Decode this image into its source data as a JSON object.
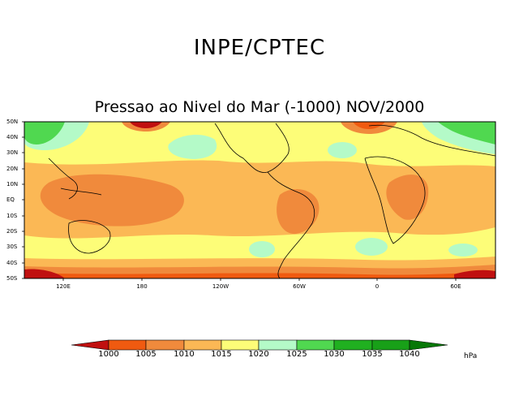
{
  "header": {
    "org_title": "INPE/CPTEC",
    "map_title": "Pressao ao Nivel do Mar (-1000) NOV/2000"
  },
  "axes": {
    "lat_ticks": [
      "50N",
      "40N",
      "30N",
      "20N",
      "10N",
      "EQ",
      "10S",
      "20S",
      "30S",
      "40S",
      "50S"
    ],
    "lon_ticks": [
      "120E",
      "180",
      "120W",
      "60W",
      "0",
      "60E"
    ]
  },
  "colorbar": {
    "levels": [
      "1000",
      "1005",
      "1010",
      "1015",
      "1020",
      "1025",
      "1030",
      "1035",
      "1040"
    ],
    "unit": "hPa",
    "colors": {
      "below_1000": "#c01010",
      "c1000_1005": "#f05a10",
      "c1005_1010": "#f08a3c",
      "c1010_1015": "#fbb855",
      "c1015_1020": "#fdfd78",
      "c1020_1025": "#b4fac8",
      "c1025_1030": "#50d850",
      "c1030_1035": "#20b020",
      "c1035_1040": "#18a018",
      "above_1040": "#087808"
    }
  }
}
